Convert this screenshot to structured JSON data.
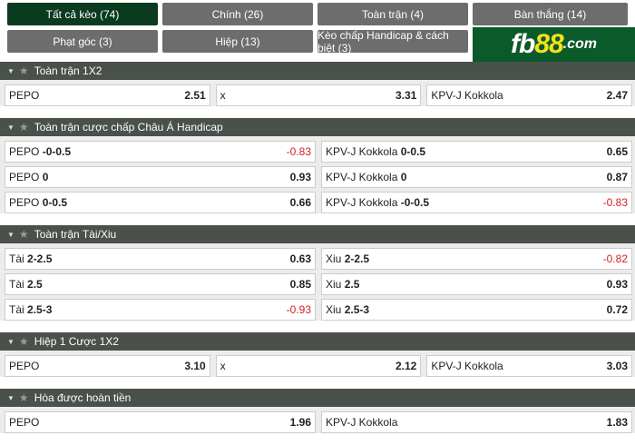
{
  "tabs": [
    {
      "label": "Tất cả kèo (74)",
      "active": true
    },
    {
      "label": "Chính (26)"
    },
    {
      "label": "Toàn trận (4)"
    },
    {
      "label": "Bàn thắng (14)"
    },
    {
      "label": "Phạt góc (3)"
    },
    {
      "label": "Hiệp (13)"
    },
    {
      "label": "Kèo chấp Handicap & cách biệt (3)"
    }
  ],
  "logo": {
    "a": "fb",
    "b": "88",
    "c": ".com"
  },
  "sections": [
    {
      "title": "Toàn trận 1X2",
      "rows": [
        [
          {
            "name": "PEPO",
            "line": "",
            "odd": "2.51"
          },
          {
            "name": "x",
            "line": "",
            "odd": "3.31"
          },
          {
            "name": "KPV-J Kokkola",
            "line": "",
            "odd": "2.47"
          }
        ]
      ]
    },
    {
      "title": "Toàn trận cược chấp Châu Á Handicap",
      "rows": [
        [
          {
            "name": "PEPO",
            "line": "-0-0.5",
            "odd": "-0.83",
            "neg": true
          },
          {
            "name": "KPV-J Kokkola",
            "line": "0-0.5",
            "odd": "0.65"
          }
        ],
        [
          {
            "name": "PEPO",
            "line": "0",
            "odd": "0.93"
          },
          {
            "name": "KPV-J Kokkola",
            "line": "0",
            "odd": "0.87"
          }
        ],
        [
          {
            "name": "PEPO",
            "line": "0-0.5",
            "odd": "0.66"
          },
          {
            "name": "KPV-J Kokkola",
            "line": "-0-0.5",
            "odd": "-0.83",
            "neg": true
          }
        ]
      ]
    },
    {
      "title": "Toàn trận Tài/Xiu",
      "rows": [
        [
          {
            "name": "Tài",
            "line": "2-2.5",
            "odd": "0.63"
          },
          {
            "name": "Xiu",
            "line": "2-2.5",
            "odd": "-0.82",
            "neg": true
          }
        ],
        [
          {
            "name": "Tài",
            "line": "2.5",
            "odd": "0.85"
          },
          {
            "name": "Xiu",
            "line": "2.5",
            "odd": "0.93"
          }
        ],
        [
          {
            "name": "Tài",
            "line": "2.5-3",
            "odd": "-0.93",
            "neg": true
          },
          {
            "name": "Xiu",
            "line": "2.5-3",
            "odd": "0.72"
          }
        ]
      ]
    },
    {
      "title": "Hiệp 1 Cược 1X2",
      "rows": [
        [
          {
            "name": "PEPO",
            "line": "",
            "odd": "3.10"
          },
          {
            "name": "x",
            "line": "",
            "odd": "2.12"
          },
          {
            "name": "KPV-J Kokkola",
            "line": "",
            "odd": "3.03"
          }
        ]
      ]
    },
    {
      "title": "Hòa được hoàn tiền",
      "rows": [
        [
          {
            "name": "PEPO",
            "line": "",
            "odd": "1.96"
          },
          {
            "name": "KPV-J Kokkola",
            "line": "",
            "odd": "1.83"
          }
        ]
      ]
    }
  ],
  "colors": {
    "active_tab": "#0b3b1f",
    "tab": "#6d6d6d",
    "header": "#4a504a",
    "negative": "#d42020",
    "logo_bg": "#0b5a2a",
    "logo_accent": "#f5e21a"
  },
  "icons": {
    "collapse": "caret-down-icon",
    "favorite": "star-icon"
  }
}
